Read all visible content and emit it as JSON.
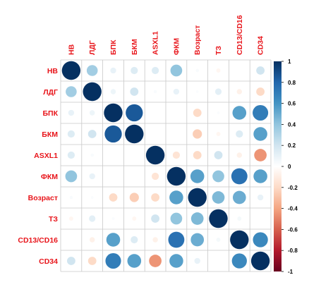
{
  "chart_data": {
    "type": "heatmap",
    "variables": [
      "НВ",
      "ЛДГ",
      "БПК",
      "БКМ",
      "ASXL1",
      "ФКМ",
      "Возраст",
      "ТЗ",
      "CD13/CD16",
      "CD34"
    ],
    "matrix": [
      [
        1.0,
        0.35,
        0.1,
        0.15,
        0.15,
        0.4,
        0.03,
        -0.05,
        0.0,
        0.2
      ],
      [
        0.35,
        1.0,
        0.08,
        0.2,
        0.03,
        0.1,
        0.02,
        0.12,
        -0.08,
        -0.2
      ],
      [
        0.1,
        0.08,
        1.0,
        0.85,
        0.0,
        0.0,
        -0.2,
        0.02,
        0.55,
        0.7
      ],
      [
        0.15,
        0.2,
        0.85,
        1.0,
        0.0,
        0.0,
        -0.25,
        -0.05,
        0.15,
        0.55
      ],
      [
        0.15,
        0.03,
        0.0,
        0.0,
        1.0,
        -0.15,
        -0.2,
        0.2,
        -0.08,
        -0.45
      ],
      [
        0.4,
        0.1,
        0.0,
        0.0,
        -0.15,
        1.0,
        0.55,
        0.4,
        0.75,
        0.55
      ],
      [
        0.03,
        0.02,
        -0.2,
        -0.25,
        -0.2,
        0.55,
        1.0,
        0.45,
        0.5,
        0.1
      ],
      [
        -0.05,
        0.12,
        0.02,
        -0.05,
        0.2,
        0.4,
        0.45,
        1.0,
        0.05,
        0.0
      ],
      [
        0.0,
        -0.08,
        0.55,
        0.15,
        -0.08,
        0.75,
        0.5,
        0.05,
        1.0,
        0.65
      ],
      [
        0.2,
        -0.2,
        0.7,
        0.55,
        -0.45,
        0.55,
        0.1,
        0.0,
        0.65,
        1.0
      ]
    ],
    "colorbar_ticks": [
      "1",
      "0.8",
      "0.6",
      "0.4",
      "0.2",
      "0",
      "-0.2",
      "-0.4",
      "-0.6",
      "-0.8",
      "-1"
    ],
    "colorbar_range": [
      -1,
      1
    ],
    "color_scale": [
      "#67001f",
      "#b2182b",
      "#d6604d",
      "#f4a582",
      "#fddbc7",
      "#ffffff",
      "#d1e5f0",
      "#92c5de",
      "#4393c3",
      "#2166ac",
      "#053061"
    ],
    "grid_color": "#c8c8c8",
    "label_color": "#e8141a",
    "title": "",
    "xlabel": "",
    "ylabel": "",
    "grid": true,
    "legend": "right"
  }
}
